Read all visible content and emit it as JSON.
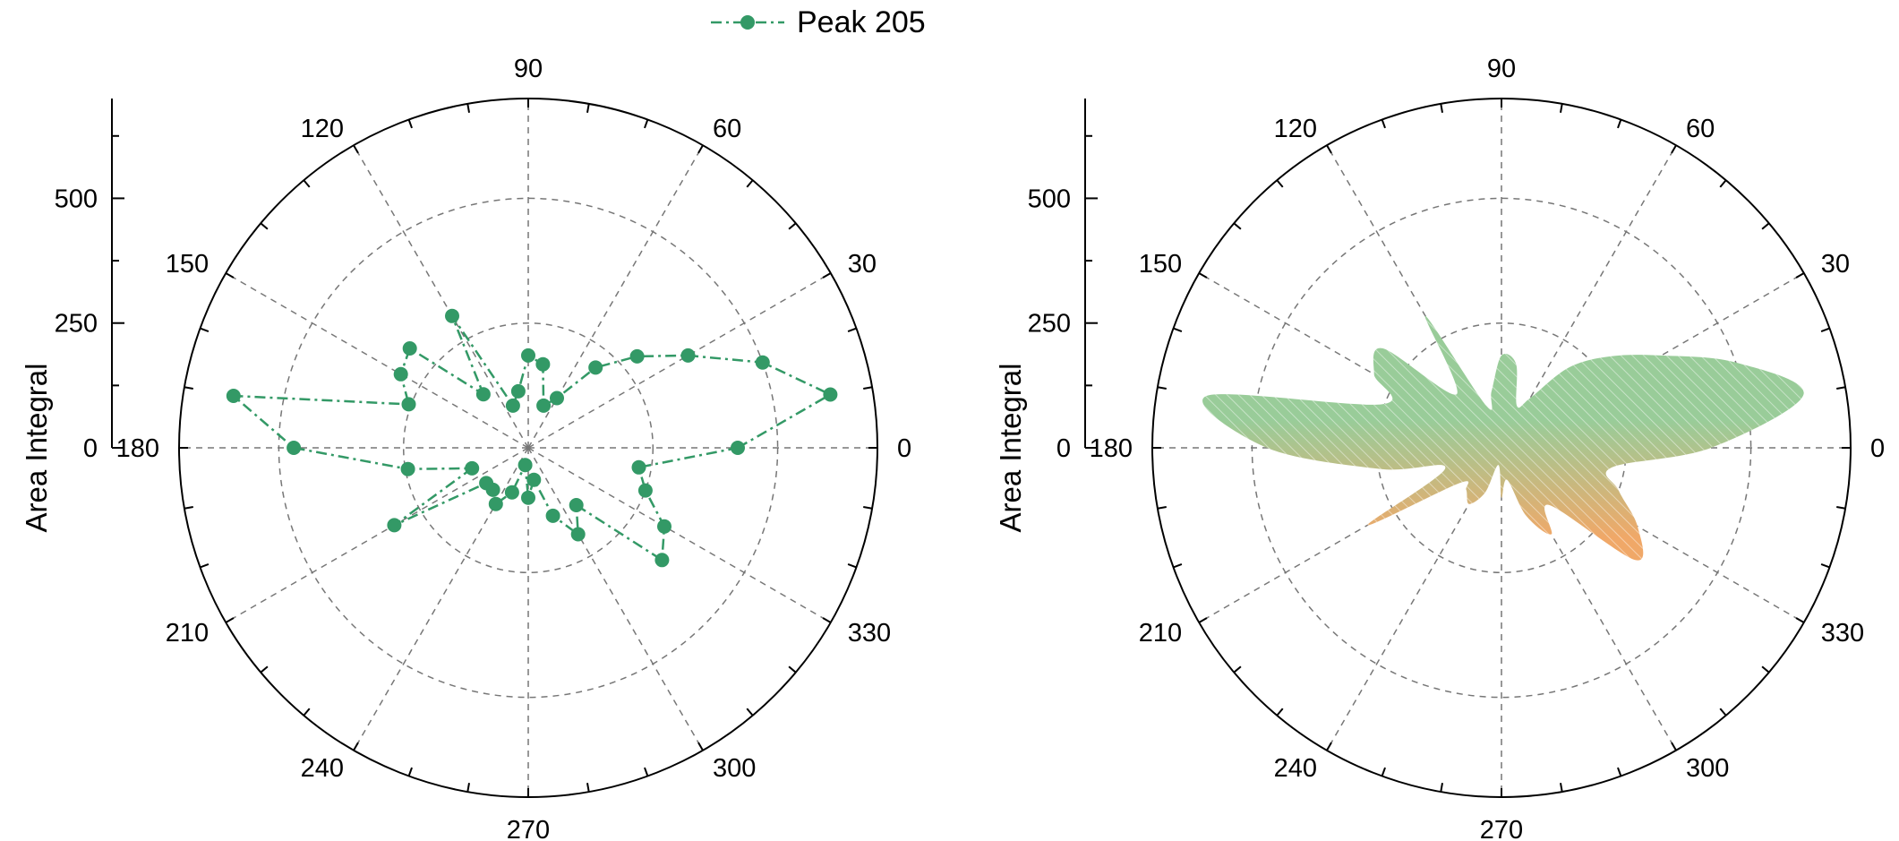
{
  "legend": {
    "label": "Peak 205",
    "color": "#339966"
  },
  "colors": {
    "series": "#339966",
    "fill_top": "#99cc99",
    "fill_bottom": "#f0a868",
    "grid": "#777777"
  },
  "chart_data": [
    {
      "type": "line",
      "chart_kind": "polar-scatter-line",
      "series": [
        {
          "name": "Peak 205",
          "theta": [
            0,
            10,
            20,
            30,
            40,
            50,
            60,
            70,
            80,
            90,
            100,
            110,
            120,
            130,
            140,
            150,
            160,
            170,
            180,
            190,
            200,
            210,
            220,
            230,
            240,
            250,
            260,
            270,
            280,
            290,
            300,
            310,
            320,
            330,
            340,
            350
          ],
          "r": [
            420,
            615,
            500,
            370,
            285,
            210,
            115,
            90,
            170,
            185,
            115,
            90,
            305,
            140,
            310,
            295,
            255,
            600,
            470,
            245,
            120,
            310,
            110,
            110,
            130,
            95,
            35,
            100,
            65,
            145,
            200,
            150,
            350,
            315,
            250,
            225
          ]
        }
      ],
      "ylabel": "Area Integral",
      "r_ticks": [
        "0",
        "250",
        "500"
      ],
      "rlim": [
        0,
        700
      ],
      "theta_ticks": [
        "0",
        "30",
        "60",
        "90",
        "120",
        "150",
        "180",
        "210",
        "240",
        "270",
        "300",
        "330"
      ],
      "grid": true,
      "legend_position": "top-center"
    },
    {
      "type": "area",
      "chart_kind": "polar-filled-area",
      "series": [
        {
          "theta": [
            0,
            10,
            20,
            30,
            40,
            50,
            60,
            70,
            80,
            90,
            100,
            110,
            120,
            130,
            140,
            150,
            160,
            170,
            180,
            190,
            200,
            210,
            220,
            230,
            240,
            250,
            260,
            270,
            280,
            290,
            300,
            310,
            320,
            330,
            340,
            350
          ],
          "r": [
            420,
            615,
            500,
            370,
            285,
            210,
            115,
            90,
            170,
            185,
            115,
            90,
            305,
            140,
            310,
            295,
            255,
            600,
            470,
            245,
            120,
            310,
            110,
            110,
            130,
            95,
            35,
            100,
            65,
            145,
            200,
            150,
            350,
            315,
            250,
            225
          ]
        }
      ],
      "ylabel": "Area Integral",
      "r_ticks": [
        "0",
        "250",
        "500"
      ],
      "rlim": [
        0,
        700
      ],
      "theta_ticks": [
        "0",
        "30",
        "60",
        "90",
        "120",
        "150",
        "180",
        "210",
        "240",
        "270",
        "300",
        "330"
      ],
      "grid": true
    }
  ]
}
